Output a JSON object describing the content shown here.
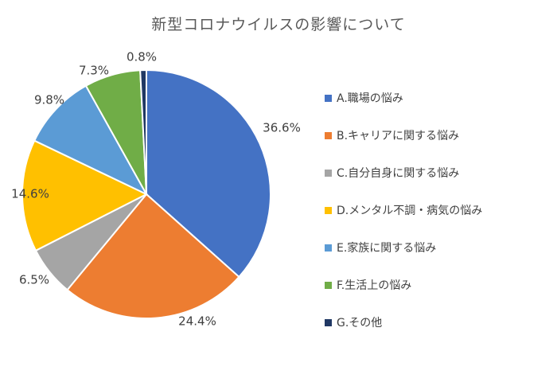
{
  "chart_data": {
    "type": "pie",
    "title": "新型コロナウイルスの影響について",
    "categories": [
      "A.職場の悩み",
      "B.キャリアに関する悩み",
      "C.自分自身に関する悩み",
      "D.メンタル不調・病気の悩み",
      "E.家族に関する悩み",
      "F.生活上の悩み",
      "G.その他"
    ],
    "values": [
      36.6,
      24.4,
      6.5,
      14.6,
      9.8,
      7.3,
      0.8
    ],
    "data_labels": [
      "36.6%",
      "24.4%",
      "6.5%",
      "14.6%",
      "9.8%",
      "7.3%",
      "0.8%"
    ],
    "colors": [
      "#4472C4",
      "#ED7D31",
      "#A5A5A5",
      "#FFC000",
      "#5B9BD5",
      "#70AD47",
      "#203864"
    ],
    "legend": "right"
  }
}
